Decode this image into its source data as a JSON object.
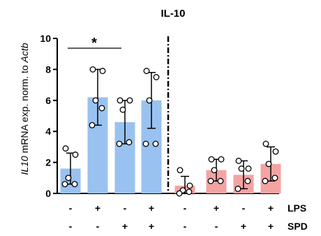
{
  "chart_data": {
    "type": "bar",
    "title": "IL-10",
    "ylabel_italic": "IL10",
    "ylabel_mid": " mRNA exp. norm. to ",
    "ylabel_italic2": "Actb",
    "ylim": [
      0,
      10
    ],
    "yticks": [
      "0",
      "2",
      "4",
      "6",
      "8",
      "10"
    ],
    "grid": false,
    "significance": "*",
    "row_labels": [
      "LPS",
      "SPD"
    ],
    "groups": [
      {
        "color": "#99c2f0",
        "lps": [
          "-",
          "+",
          "-",
          "+"
        ],
        "spd": [
          "-",
          "-",
          "+",
          "+"
        ],
        "means": [
          1.6,
          6.2,
          4.6,
          6.0
        ],
        "errors": [
          1.0,
          1.8,
          1.4,
          1.8
        ],
        "points": [
          [
            2.9,
            2.5,
            1.0,
            0.6,
            0.6
          ],
          [
            8.0,
            7.9,
            6.0,
            5.5,
            4.4
          ],
          [
            6.0,
            6.0,
            5.4,
            3.3,
            3.2
          ],
          [
            7.9,
            7.5,
            6.0,
            3.2,
            3.2
          ]
        ]
      },
      {
        "color": "#f4a3a3",
        "lps": [
          "-",
          "+",
          "-",
          "+"
        ],
        "spd": [
          "-",
          "-",
          "+",
          "+"
        ],
        "means": [
          0.5,
          1.5,
          1.2,
          1.9
        ],
        "errors": [
          0.6,
          0.7,
          0.9,
          1.1
        ],
        "points": [
          [
            1.5,
            0.5,
            0.2,
            0.1,
            0.0
          ],
          [
            2.2,
            2.2,
            1.5,
            0.8,
            0.8
          ],
          [
            2.1,
            1.6,
            1.6,
            0.8,
            0.3
          ],
          [
            3.2,
            2.7,
            1.9,
            1.0,
            0.8
          ]
        ]
      }
    ]
  }
}
